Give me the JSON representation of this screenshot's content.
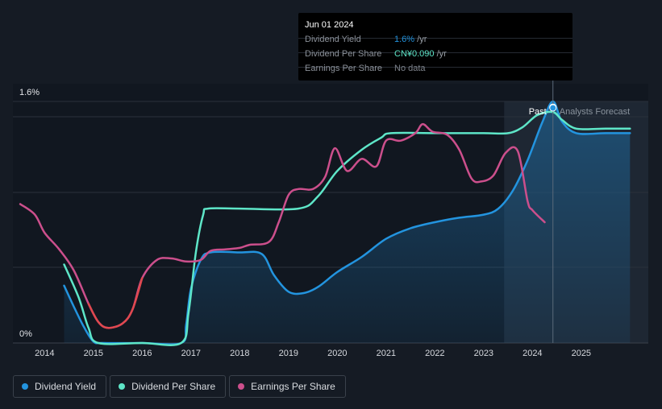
{
  "chart_data": {
    "type": "line",
    "title": "",
    "xlabel": "",
    "ylabel": "",
    "y_tick_labels": [
      "1.6%",
      "0%"
    ],
    "x_ticks": [
      "2014",
      "2015",
      "2016",
      "2017",
      "2018",
      "2019",
      "2020",
      "2021",
      "2022",
      "2023",
      "2024",
      "2025"
    ],
    "grid": true,
    "legend_position": "bottom-left",
    "region_labels": {
      "past": "Past",
      "forecast": "Analysts Forecast"
    },
    "series": [
      {
        "name": "Dividend Yield",
        "color": "#2394df",
        "unit": "%",
        "points": [
          [
            2014.4,
            0.38
          ],
          [
            2014.6,
            0.24
          ],
          [
            2014.8,
            0.11
          ],
          [
            2015.0,
            0.01
          ],
          [
            2015.2,
            0.0
          ],
          [
            2016.0,
            0.0
          ],
          [
            2016.8,
            0.0
          ],
          [
            2016.9,
            0.12
          ],
          [
            2017.0,
            0.36
          ],
          [
            2017.2,
            0.55
          ],
          [
            2017.4,
            0.6
          ],
          [
            2018.0,
            0.6
          ],
          [
            2018.45,
            0.59
          ],
          [
            2018.7,
            0.45
          ],
          [
            2019.0,
            0.34
          ],
          [
            2019.3,
            0.33
          ],
          [
            2019.6,
            0.37
          ],
          [
            2020.0,
            0.47
          ],
          [
            2020.5,
            0.57
          ],
          [
            2021.0,
            0.69
          ],
          [
            2021.5,
            0.76
          ],
          [
            2022.0,
            0.8
          ],
          [
            2022.5,
            0.83
          ],
          [
            2023.0,
            0.85
          ],
          [
            2023.3,
            0.89
          ],
          [
            2023.6,
            1.01
          ],
          [
            2023.9,
            1.21
          ],
          [
            2024.2,
            1.46
          ],
          [
            2024.42,
            1.6
          ],
          [
            2024.6,
            1.47
          ],
          [
            2024.9,
            1.39
          ],
          [
            2025.5,
            1.39
          ],
          [
            2026.0,
            1.39
          ]
        ]
      },
      {
        "name": "Dividend Per Share",
        "color": "#5ee6c8",
        "unit": "CN¥",
        "points": [
          [
            2014.4,
            0.52
          ],
          [
            2014.7,
            0.3
          ],
          [
            2014.9,
            0.1
          ],
          [
            2015.1,
            0.0
          ],
          [
            2016.0,
            0.0
          ],
          [
            2016.8,
            0.0
          ],
          [
            2016.95,
            0.2
          ],
          [
            2017.1,
            0.6
          ],
          [
            2017.25,
            0.85
          ],
          [
            2017.35,
            0.89
          ],
          [
            2018.0,
            0.89
          ],
          [
            2019.2,
            0.89
          ],
          [
            2019.6,
            0.97
          ],
          [
            2020.0,
            1.14
          ],
          [
            2020.5,
            1.28
          ],
          [
            2020.9,
            1.36
          ],
          [
            2021.1,
            1.39
          ],
          [
            2022.0,
            1.39
          ],
          [
            2023.0,
            1.39
          ],
          [
            2023.5,
            1.39
          ],
          [
            2023.8,
            1.43
          ],
          [
            2024.1,
            1.51
          ],
          [
            2024.42,
            1.53
          ],
          [
            2024.6,
            1.48
          ],
          [
            2024.9,
            1.42
          ],
          [
            2025.5,
            1.42
          ],
          [
            2026.0,
            1.42
          ]
        ]
      },
      {
        "name": "Earnings Per Share",
        "color": "#cc4f8c",
        "unit": "CN¥",
        "points": [
          [
            2013.5,
            0.92
          ],
          [
            2013.8,
            0.85
          ],
          [
            2014.0,
            0.73
          ],
          [
            2014.3,
            0.62
          ],
          [
            2014.6,
            0.48
          ],
          [
            2014.9,
            0.26
          ],
          [
            2015.1,
            0.14
          ],
          [
            2015.3,
            0.1
          ],
          [
            2015.6,
            0.13
          ],
          [
            2015.8,
            0.22
          ],
          [
            2016.0,
            0.43
          ],
          [
            2016.3,
            0.55
          ],
          [
            2016.6,
            0.56
          ],
          [
            2016.9,
            0.54
          ],
          [
            2017.2,
            0.55
          ],
          [
            2017.4,
            0.61
          ],
          [
            2017.7,
            0.62
          ],
          [
            2018.0,
            0.63
          ],
          [
            2018.2,
            0.65
          ],
          [
            2018.6,
            0.67
          ],
          [
            2018.8,
            0.8
          ],
          [
            2019.0,
            0.98
          ],
          [
            2019.2,
            1.02
          ],
          [
            2019.5,
            1.02
          ],
          [
            2019.75,
            1.1
          ],
          [
            2019.95,
            1.29
          ],
          [
            2020.2,
            1.14
          ],
          [
            2020.5,
            1.22
          ],
          [
            2020.8,
            1.17
          ],
          [
            2021.0,
            1.34
          ],
          [
            2021.3,
            1.34
          ],
          [
            2021.6,
            1.39
          ],
          [
            2021.75,
            1.45
          ],
          [
            2021.95,
            1.4
          ],
          [
            2022.25,
            1.38
          ],
          [
            2022.5,
            1.28
          ],
          [
            2022.75,
            1.09
          ],
          [
            2022.95,
            1.07
          ],
          [
            2023.2,
            1.11
          ],
          [
            2023.45,
            1.26
          ],
          [
            2023.7,
            1.27
          ],
          [
            2023.9,
            0.94
          ],
          [
            2024.0,
            0.88
          ],
          [
            2024.25,
            0.8
          ]
        ]
      }
    ]
  },
  "tooltip": {
    "date": "Jun 01 2024",
    "rows": [
      {
        "label": "Dividend Yield",
        "value": "1.6%",
        "unit": " /yr",
        "color": "#2394df"
      },
      {
        "label": "Dividend Per Share",
        "value": "CN¥0.090",
        "unit": " /yr",
        "color": "#5ee6c8"
      },
      {
        "label": "Earnings Per Share",
        "value": "No data",
        "unit": "",
        "color": "#7d828a"
      }
    ]
  },
  "legend": [
    {
      "label": "Dividend Yield",
      "color": "#2394df"
    },
    {
      "label": "Dividend Per Share",
      "color": "#5ee6c8"
    },
    {
      "label": "Earnings Per Share",
      "color": "#cc4f8c"
    }
  ]
}
